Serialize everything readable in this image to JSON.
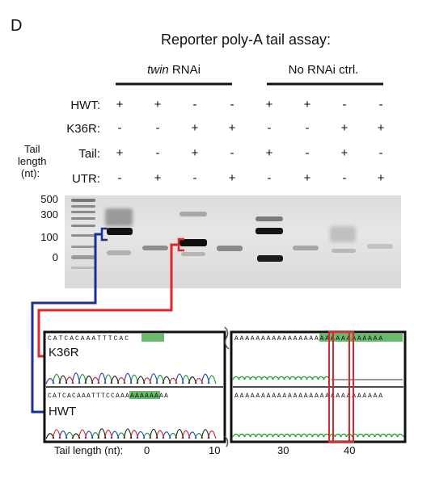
{
  "figure": {
    "panel_letter": "D",
    "title": "Reporter poly-A tail assay:",
    "groups": [
      {
        "label_italic": "twin",
        "label_rest": " RNAi"
      },
      {
        "label_italic": "",
        "label_rest": "No RNAi ctrl."
      }
    ],
    "rows": [
      {
        "label": "HWT:",
        "signs": [
          "+",
          "+",
          "-",
          "-",
          "+",
          "+",
          "-",
          "-"
        ]
      },
      {
        "label": "K36R:",
        "signs": [
          "-",
          "-",
          "+",
          "+",
          "-",
          "-",
          "+",
          "+"
        ]
      },
      {
        "label": "Tail:",
        "signs": [
          "+",
          "-",
          "+",
          "-",
          "+",
          "-",
          "+",
          "-"
        ]
      },
      {
        "label": "UTR:",
        "signs": [
          "-",
          "+",
          "-",
          "+",
          "-",
          "+",
          "-",
          "+"
        ]
      }
    ],
    "tail_length_label_lines": [
      "Tail",
      "length",
      "(nt):"
    ],
    "ladder_labels": [
      "500",
      "300",
      "100",
      "0"
    ],
    "trace_labels": {
      "top": "K36R",
      "bottom": "HWT"
    },
    "seq_top_left": "CATCACAAATTTCAC",
    "seq_top_right": "AAAAAAAAAAAAAAAAAAAAAAAAAAAA",
    "seq_bottom_left": "CATCACAAATTTCCAAAAAAAAAAA",
    "seq_bottom_right": "AAAAAAAAAAAAAAAAAAAAAAAAAAAA",
    "axis_label": "Tail length (nt):",
    "axis_ticks": [
      "0",
      "10",
      "30",
      "40"
    ],
    "colors": {
      "blue": "#1c2f8f",
      "red": "#e0252b",
      "green_highlight": "#4caf50"
    }
  }
}
